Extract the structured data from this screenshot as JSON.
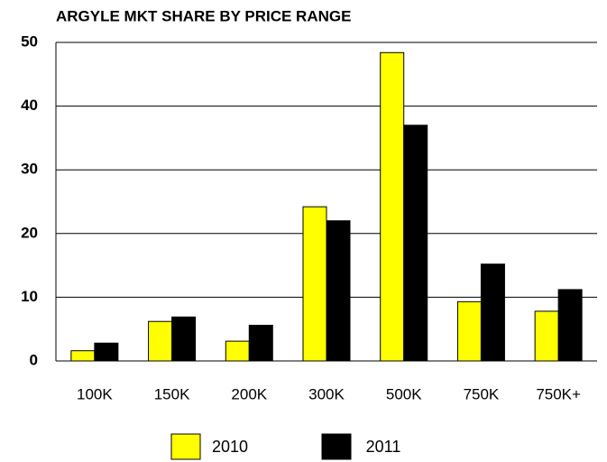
{
  "chart_data": {
    "type": "bar",
    "title": "ARGYLE MKT SHARE BY PRICE RANGE",
    "categories": [
      "100K",
      "150K",
      "200K",
      "300K",
      "500K",
      "750K",
      "750K+"
    ],
    "series": [
      {
        "name": "2010",
        "color": "#ffff00",
        "values": [
          1.6,
          6.2,
          3.1,
          24.2,
          48.4,
          9.3,
          7.8
        ]
      },
      {
        "name": "2011",
        "color": "#000000",
        "values": [
          2.8,
          6.9,
          5.6,
          22.0,
          37.0,
          15.2,
          11.2
        ]
      }
    ],
    "ylim": [
      0,
      50
    ],
    "yticks": [
      0,
      10,
      20,
      30,
      40,
      50
    ],
    "grid": true,
    "legend": "bottom"
  }
}
